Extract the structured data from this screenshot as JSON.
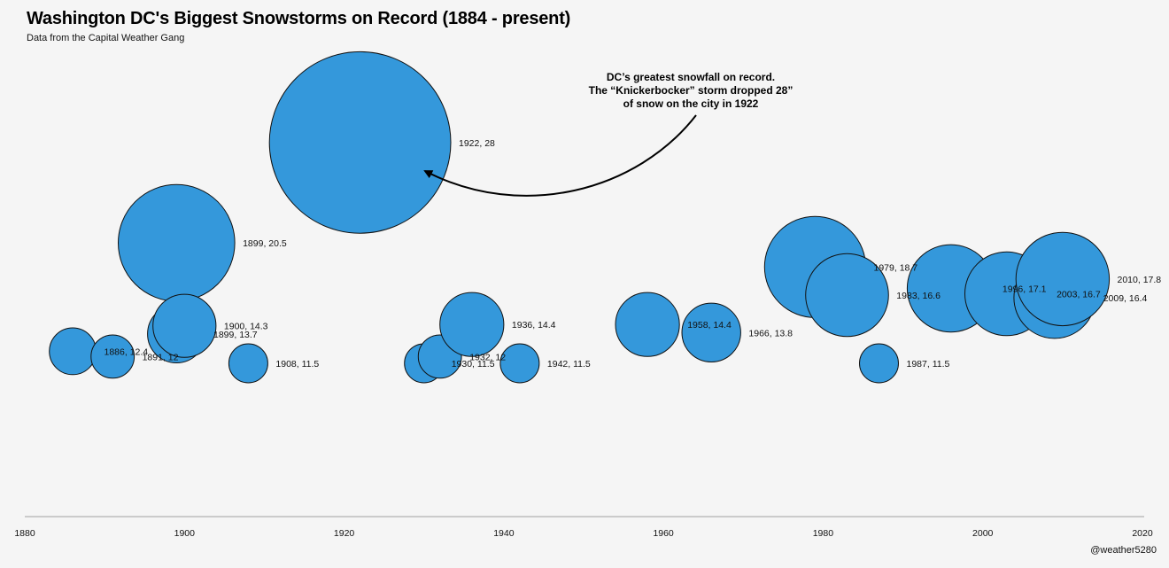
{
  "title": "Washington DC's Biggest Snowstorms on Record (1884 - present)",
  "subtitle": "Data from the Capital Weather Gang",
  "credit": "@weather5280",
  "chart_data": {
    "type": "scatter",
    "encoding": "bubble",
    "xlim": [
      1880,
      2020
    ],
    "x_ticks": [
      1880,
      1900,
      1920,
      1940,
      1960,
      1980,
      2000,
      2020
    ],
    "grid": false,
    "points": [
      {
        "year": 1886,
        "snow": 12.4,
        "label": "1886, 12.4"
      },
      {
        "year": 1891,
        "snow": 12,
        "label": "1891, 12"
      },
      {
        "year": 1899,
        "snow": 13.7,
        "label": "1899, 13.7"
      },
      {
        "year": 1899,
        "snow": 20.5,
        "label": "1899, 20.5"
      },
      {
        "year": 1900,
        "snow": 14.3,
        "label": "1900, 14.3"
      },
      {
        "year": 1908,
        "snow": 11.5,
        "label": "1908, 11.5"
      },
      {
        "year": 1922,
        "snow": 28,
        "label": "1922, 28"
      },
      {
        "year": 1930,
        "snow": 11.5,
        "label": "1930, 11.5"
      },
      {
        "year": 1932,
        "snow": 12,
        "label": "1932, 12"
      },
      {
        "year": 1936,
        "snow": 14.4,
        "label": "1936, 14.4"
      },
      {
        "year": 1942,
        "snow": 11.5,
        "label": "1942, 11.5"
      },
      {
        "year": 1958,
        "snow": 14.4,
        "label": "1958, 14.4"
      },
      {
        "year": 1966,
        "snow": 13.8,
        "label": "1966, 13.8"
      },
      {
        "year": 1979,
        "snow": 18.7,
        "label": "1979, 18.7"
      },
      {
        "year": 1983,
        "snow": 16.6,
        "label": "1983, 16.6"
      },
      {
        "year": 1987,
        "snow": 11.5,
        "label": "1987, 11.5"
      },
      {
        "year": 1996,
        "snow": 17.1,
        "label": "1996, 17.1"
      },
      {
        "year": 2003,
        "snow": 16.7,
        "label": "2003, 16.7"
      },
      {
        "year": 2009,
        "snow": 16.4,
        "label": "2009, 16.4"
      },
      {
        "year": 2010,
        "snow": 17.8,
        "label": "2010, 17.8"
      }
    ],
    "annotation": {
      "lines": [
        "DC’s greatest snowfall on record.",
        "The “Knickerbocker” storm dropped 28”",
        "of snow on the city in 1922"
      ],
      "points_to_year": 1922
    }
  }
}
